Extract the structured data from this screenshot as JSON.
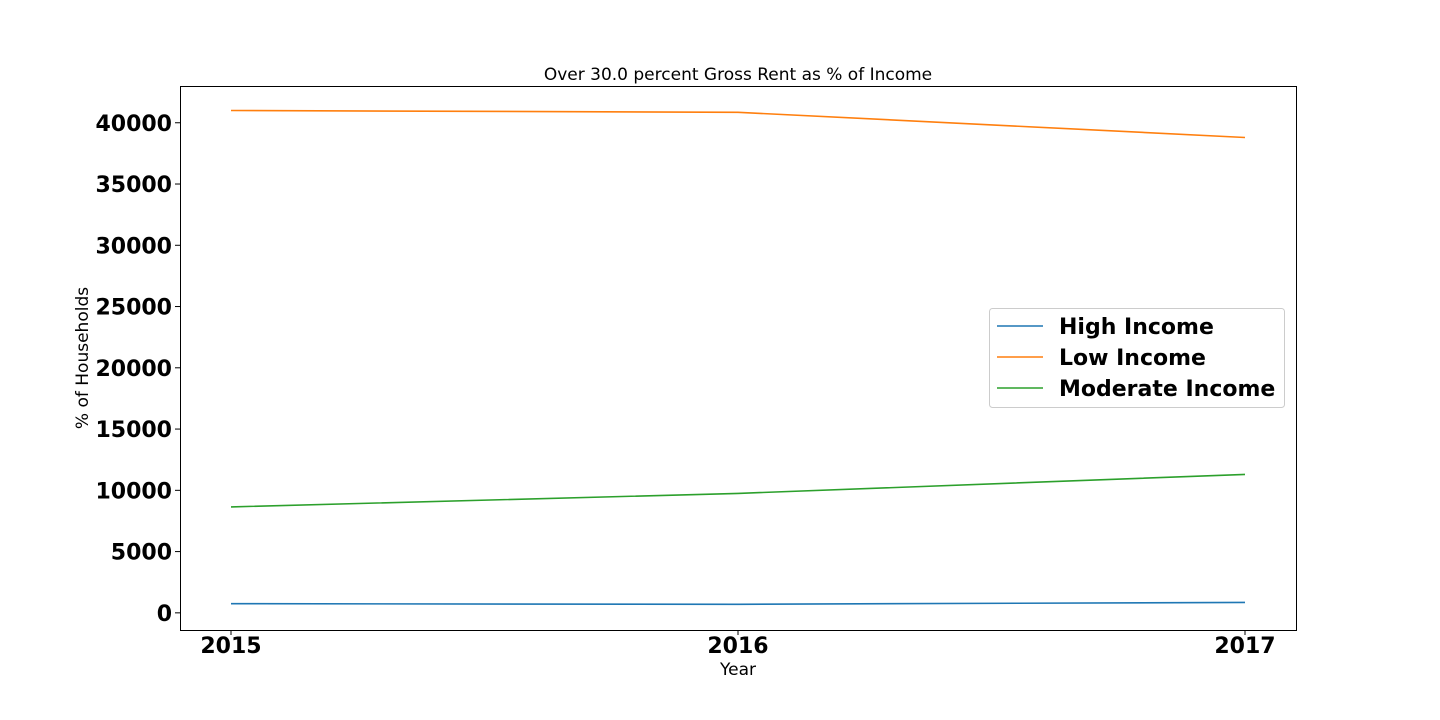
{
  "chart_data": {
    "type": "line",
    "title": "Over 30.0 percent Gross Rent as % of Income",
    "xlabel": "Year",
    "ylabel": "% of Households",
    "x": [
      "2015",
      "2016",
      "2017"
    ],
    "xticks": [
      "2015",
      "2016",
      "2017"
    ],
    "yticks": [
      "0",
      "5000",
      "10000",
      "15000",
      "20000",
      "25000",
      "30000",
      "35000",
      "40000"
    ],
    "ylim": [
      -1400,
      43000
    ],
    "grid": false,
    "legend_position": "center-right",
    "series": [
      {
        "name": "High Income",
        "values": [
          750,
          700,
          850
        ],
        "color": "#1f77b4"
      },
      {
        "name": "Low Income",
        "values": [
          41000,
          40850,
          38800
        ],
        "color": "#ff7f0e"
      },
      {
        "name": "Moderate Income",
        "values": [
          8650,
          9750,
          11300
        ],
        "color": "#2ca02c"
      }
    ]
  }
}
